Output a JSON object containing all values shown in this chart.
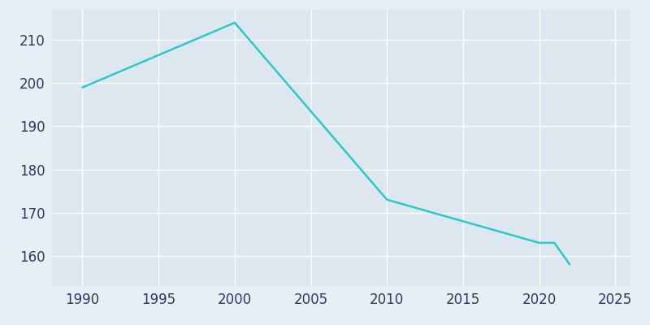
{
  "years": [
    1990,
    2000,
    2010,
    2020,
    2021,
    2022
  ],
  "population": [
    199,
    214,
    173,
    163,
    163,
    158
  ],
  "line_color": "#2ec8c8",
  "fig_bg_color": "#e8eef5",
  "plot_bg_color": "#dce7f0",
  "grid_color": "#ffffff",
  "tick_color": "#2d3a5e",
  "xlim": [
    1988,
    2026
  ],
  "ylim": [
    153,
    217
  ],
  "xticks": [
    1990,
    1995,
    2000,
    2005,
    2010,
    2015,
    2020,
    2025
  ],
  "yticks": [
    160,
    170,
    180,
    190,
    200,
    210
  ],
  "linewidth": 1.8,
  "tick_fontsize": 12
}
